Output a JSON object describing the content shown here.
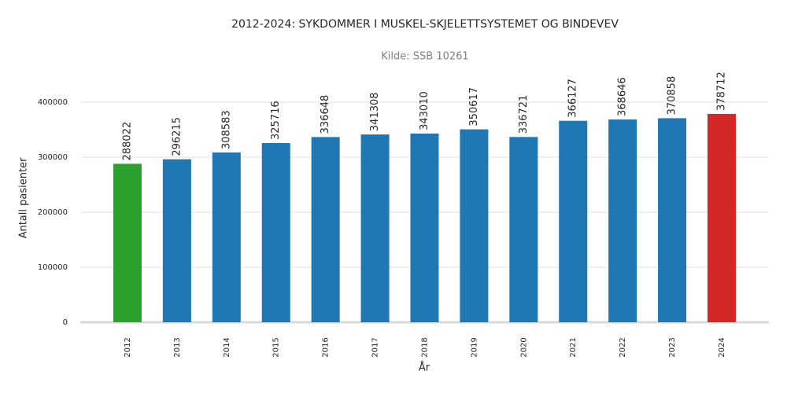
{
  "chart_data": {
    "type": "bar",
    "title": "2012-2024: SYKDOMMER I MUSKEL-SKJELETTSYSTEMET OG BINDEVEV",
    "subtitle": "Kilde: SSB 10261",
    "x_label": "År",
    "y_label": "Antall pasienter",
    "categories": [
      "2012",
      "2013",
      "2014",
      "2015",
      "2016",
      "2017",
      "2018",
      "2019",
      "2020",
      "2021",
      "2022",
      "2023",
      "2024"
    ],
    "values": [
      288022,
      296215,
      308583,
      325716,
      336648,
      341308,
      343010,
      350617,
      336721,
      366127,
      368646,
      370858,
      378712
    ],
    "colors": [
      "#2ca02c",
      "#1f77b4",
      "#1f77b4",
      "#1f77b4",
      "#1f77b4",
      "#1f77b4",
      "#1f77b4",
      "#1f77b4",
      "#1f77b4",
      "#1f77b4",
      "#1f77b4",
      "#1f77b4",
      "#d62728"
    ],
    "ylim": [
      0,
      400000
    ],
    "yticks": [
      0,
      100000,
      200000,
      300000,
      400000
    ],
    "grid": true
  }
}
